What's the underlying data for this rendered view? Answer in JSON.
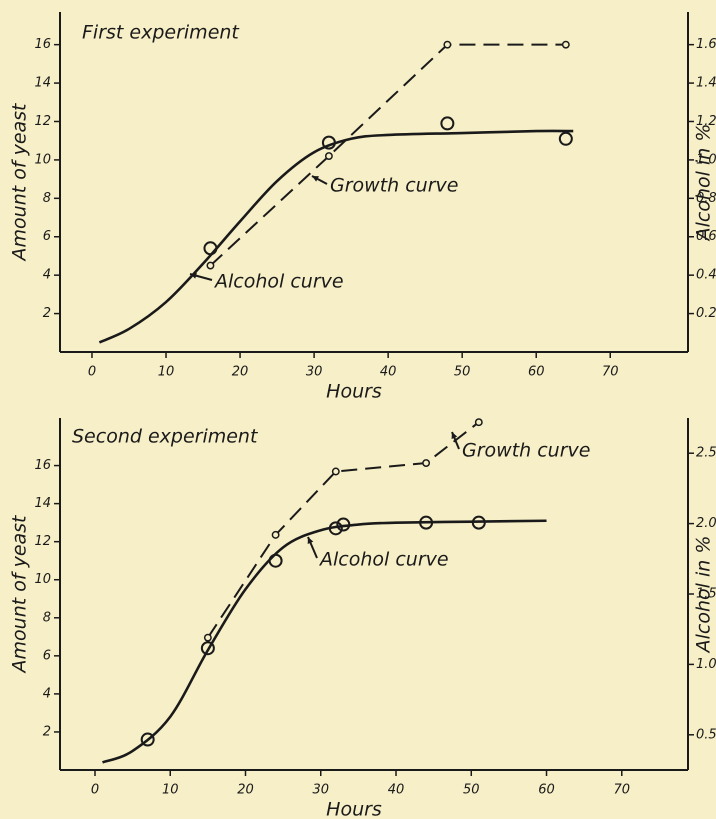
{
  "chart_data": [
    {
      "type": "line",
      "title": "First experiment",
      "xlabel": "Hours",
      "ylabel": "Amount of yeast",
      "y2label": "Alcohol in %",
      "xlim": [
        -4.32,
        80.5
      ],
      "xticks": [
        0,
        10,
        20,
        30,
        40,
        50,
        60,
        70
      ],
      "ylim": [
        0,
        17.7
      ],
      "yticks": [
        2,
        4,
        6,
        8,
        10,
        12,
        14,
        16
      ],
      "y2lim": [
        0,
        1.77
      ],
      "y2ticks": [
        0.2,
        0.4,
        0.6,
        0.8,
        {
          "value": 1,
          "label": "1.0"
        },
        1.2,
        1.4,
        1.6
      ],
      "series": [
        {
          "name": "Growth curve",
          "color": "#1a1a1a",
          "dash": false,
          "x": [
            1,
            5,
            10,
            15,
            20,
            25,
            30,
            35,
            40,
            50,
            60,
            65
          ],
          "values": [
            0.5,
            1.2,
            2.6,
            4.6,
            6.8,
            8.9,
            10.4,
            11.1,
            11.3,
            11.4,
            11.5,
            11.5
          ],
          "points_x": [
            16,
            32,
            48,
            64
          ],
          "points": [
            5.4,
            10.9,
            11.9,
            11.1
          ]
        },
        {
          "name": "Alcohol curve",
          "color": "#1a1a1a",
          "dash": true,
          "axis": "y2",
          "x": [
            16,
            32,
            48,
            64
          ],
          "values": [
            0.45,
            1.02,
            1.6,
            1.6
          ]
        }
      ]
    },
    {
      "type": "line",
      "title": "Second experiment",
      "xlabel": "Hours",
      "ylabel": "Amount of yeast",
      "y2label": "Alcohol in %",
      "xlim": [
        -4.65,
        78.8
      ],
      "xticks": [
        0,
        10,
        20,
        30,
        40,
        50,
        60,
        70
      ],
      "ylim": [
        0,
        18.5
      ],
      "yticks": [
        2,
        4,
        6,
        8,
        10,
        12,
        14,
        16
      ],
      "y2lim": [
        0.25,
        2.75
      ],
      "y2ticks": [
        0.5,
        {
          "value": 1,
          "label": "1.0"
        },
        1.5,
        {
          "value": 2,
          "label": "2.0"
        },
        2.5
      ],
      "series": [
        {
          "name": "Growth curve",
          "color": "#1a1a1a",
          "dash": false,
          "x": [
            1,
            5,
            10,
            15,
            20,
            25,
            30,
            35,
            40,
            50,
            60
          ],
          "values": [
            0.4,
            1.0,
            2.8,
            6.3,
            9.5,
            11.7,
            12.6,
            12.9,
            13,
            13.05,
            13.1
          ],
          "points_x": [
            7,
            15,
            24,
            32,
            33,
            44,
            51
          ],
          "points": [
            1.6,
            6.4,
            11,
            12.7,
            12.9,
            13,
            13
          ]
        },
        {
          "name": "Alcohol curve",
          "color": "#1a1a1a",
          "dash": true,
          "axis": "y2",
          "x": [
            15,
            24,
            32,
            44,
            51
          ],
          "values": [
            1.19,
            1.92,
            2.37,
            2.43,
            2.72
          ]
        }
      ]
    }
  ]
}
